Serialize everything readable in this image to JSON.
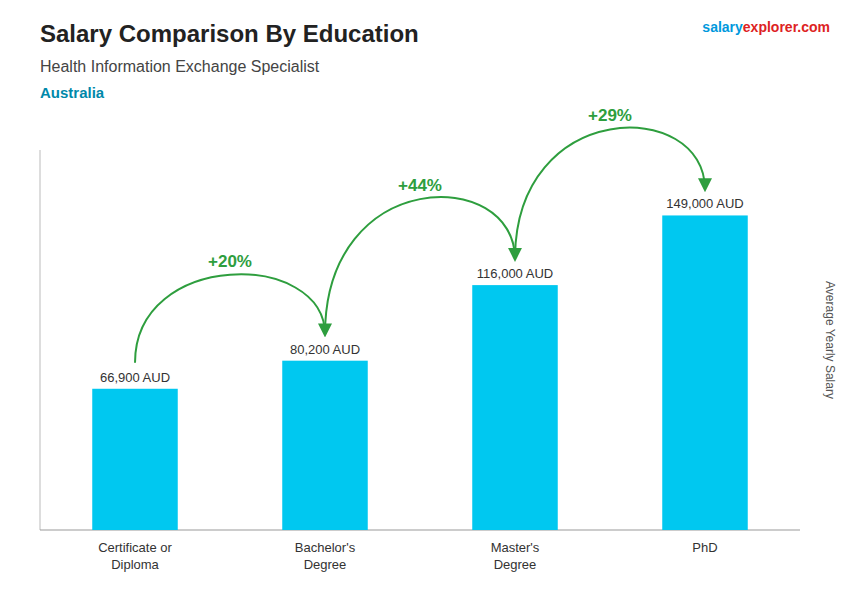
{
  "chart_data": {
    "type": "bar",
    "title": "Salary Comparison By Education",
    "subtitle": "Health Information Exchange Specialist",
    "ylabel": "Average Yearly Salary",
    "categories": [
      "Certificate or\nDiploma",
      "Bachelor's\nDegree",
      "Master's\nDegree",
      "PhD"
    ],
    "values": [
      66900,
      80200,
      116000,
      149000
    ],
    "value_labels": [
      "66,900 AUD",
      "80,200 AUD",
      "116,000 AUD",
      "149,000 AUD"
    ],
    "data_labels": true,
    "color": "#00C8F0",
    "ylim": [
      0,
      180000
    ],
    "tick_labels": "x",
    "grid": false,
    "annotations": {
      "country": "Australia",
      "source": [
        "salary",
        "explorer",
        ".com"
      ],
      "changes": [
        "+20%",
        "+44%",
        "+29%"
      ]
    }
  }
}
